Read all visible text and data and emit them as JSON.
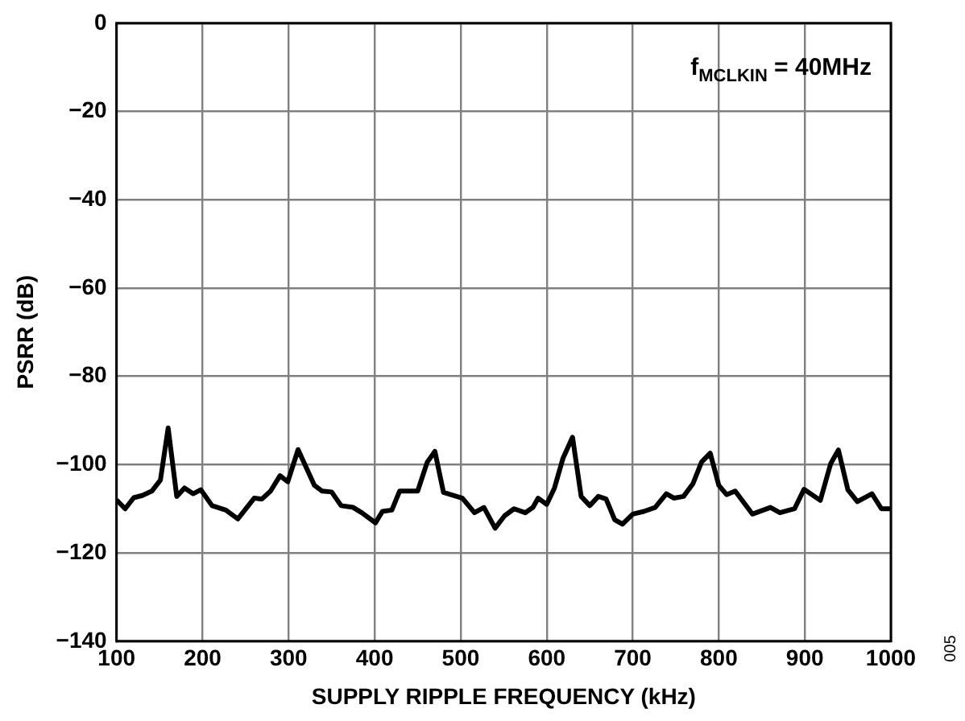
{
  "chart_data": {
    "type": "line",
    "xlabel": "SUPPLY RIPPLE FREQUENCY (kHz)",
    "ylabel": "PSRR (dB)",
    "annotations": [
      "f$_{MCLKIN}$ = 40MHz",
      "005"
    ],
    "xlim": [
      100,
      1000
    ],
    "xticks": [
      100,
      200,
      300,
      400,
      500,
      600,
      700,
      800,
      900,
      1000
    ],
    "ylim": [
      -140,
      0
    ],
    "yticks": [
      -140,
      -120,
      -100,
      -80,
      -60,
      -40,
      -20,
      0
    ],
    "grid": true,
    "legend": false,
    "marker": "none",
    "line_style": "solid",
    "x": [
      100,
      110,
      120,
      130,
      141,
      151,
      160,
      170,
      179,
      189,
      198,
      211,
      227,
      241,
      260,
      269,
      279,
      290,
      299,
      311,
      330,
      339,
      350,
      361,
      375,
      385,
      401,
      409,
      420,
      429,
      439,
      450,
      461,
      470,
      480,
      502,
      516,
      527,
      540,
      551,
      562,
      575,
      584,
      590,
      600,
      609,
      619,
      630,
      640,
      650,
      660,
      669,
      679,
      688,
      700,
      713,
      726,
      739,
      748,
      759,
      770,
      780,
      790,
      800,
      809,
      819,
      839,
      860,
      871,
      888,
      899,
      918,
      930,
      939,
      950,
      961,
      978,
      989,
      1000
    ],
    "series": [
      {
        "color": "#000000",
        "values": [
          -108,
          -110,
          -107.5,
          -107,
          -106,
          -103.5,
          -91.7,
          -107.2,
          -105.3,
          -106.6,
          -105.7,
          -109.3,
          -110.3,
          -112.3,
          -107.6,
          -107.8,
          -106,
          -102.5,
          -103.9,
          -96.6,
          -104.7,
          -106,
          -106.2,
          -109.3,
          -109.7,
          -110.9,
          -113.2,
          -110.6,
          -110.3,
          -106,
          -106,
          -106,
          -99.5,
          -97,
          -106.3,
          -107.6,
          -110.9,
          -109.7,
          -114.4,
          -111.6,
          -110,
          -110.9,
          -109.7,
          -107.6,
          -109,
          -105.3,
          -98.5,
          -93.8,
          -107.2,
          -109.3,
          -107.2,
          -107.8,
          -112.5,
          -113.5,
          -111.2,
          -110.6,
          -109.7,
          -106.6,
          -107.6,
          -107.2,
          -104.3,
          -99.4,
          -97.4,
          -104.7,
          -106.8,
          -106,
          -111.2,
          -109.7,
          -110.9,
          -110,
          -105.6,
          -108.1,
          -99.8,
          -96.7,
          -105.7,
          -108.4,
          -106.6,
          -110,
          -110
        ]
      }
    ]
  }
}
